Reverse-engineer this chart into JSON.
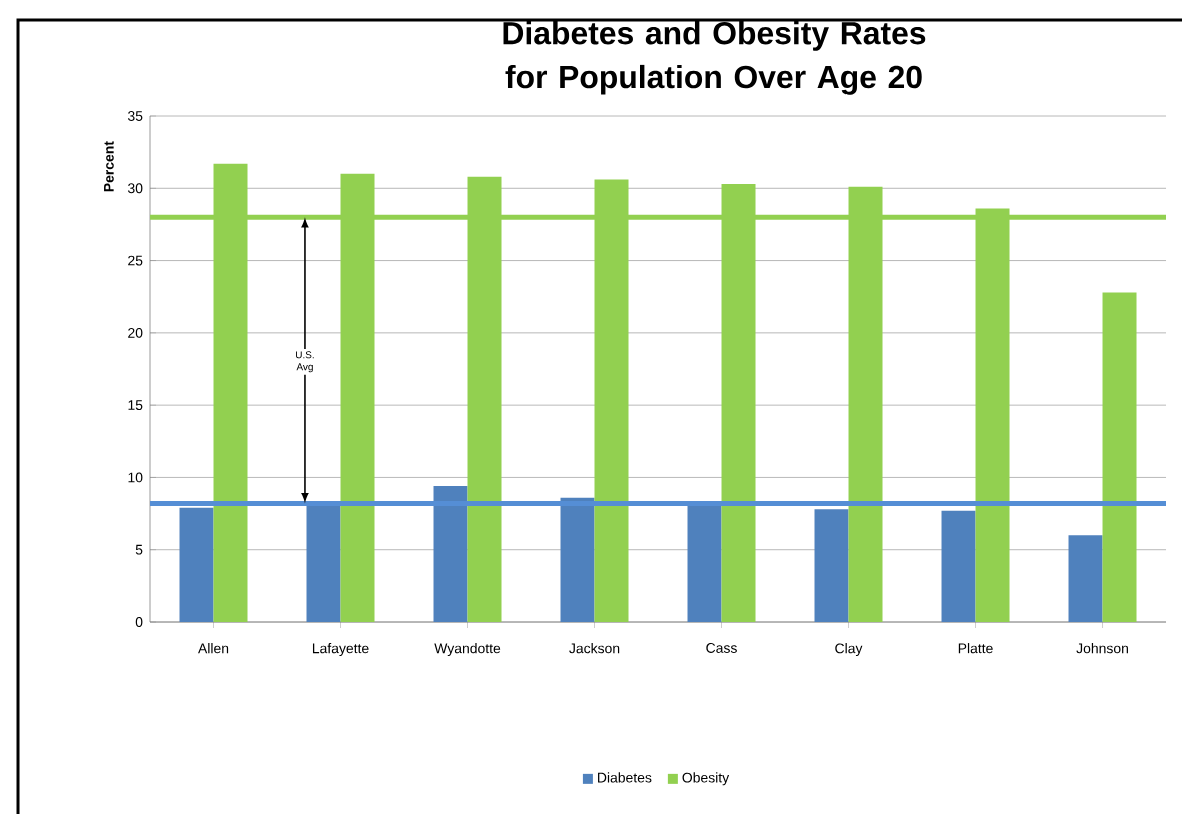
{
  "chart_data": {
    "type": "bar",
    "title": "Diabetes and Obesity Rates for Population Over Age 20",
    "ylabel": "Percent",
    "categories": [
      "Allen",
      "Lafayette",
      "Wyandotte",
      "Jackson",
      "Cass",
      "Clay",
      "Platte",
      "Johnson"
    ],
    "series": [
      {
        "name": "Diabetes",
        "color": "#4f81bd",
        "values": [
          7.9,
          8.3,
          9.4,
          8.6,
          8.2,
          7.8,
          7.7,
          6.0
        ]
      },
      {
        "name": "Obesity",
        "color": "#92d050",
        "values": [
          31.7,
          31.0,
          30.8,
          30.6,
          30.3,
          30.1,
          28.6,
          22.8
        ]
      }
    ],
    "ylim": [
      0,
      35
    ],
    "yticks": [
      0,
      5,
      10,
      15,
      20,
      25,
      30,
      35
    ],
    "grid": "y",
    "legend": "bottom",
    "ref_lines": [
      {
        "axis": "y",
        "value": 28.0,
        "color": "#92d050"
      },
      {
        "axis": "y",
        "value": 8.2,
        "color": "#558ed5"
      }
    ],
    "annotations": [
      {
        "text": "U.S. Avg",
        "y": 28.0
      }
    ]
  }
}
